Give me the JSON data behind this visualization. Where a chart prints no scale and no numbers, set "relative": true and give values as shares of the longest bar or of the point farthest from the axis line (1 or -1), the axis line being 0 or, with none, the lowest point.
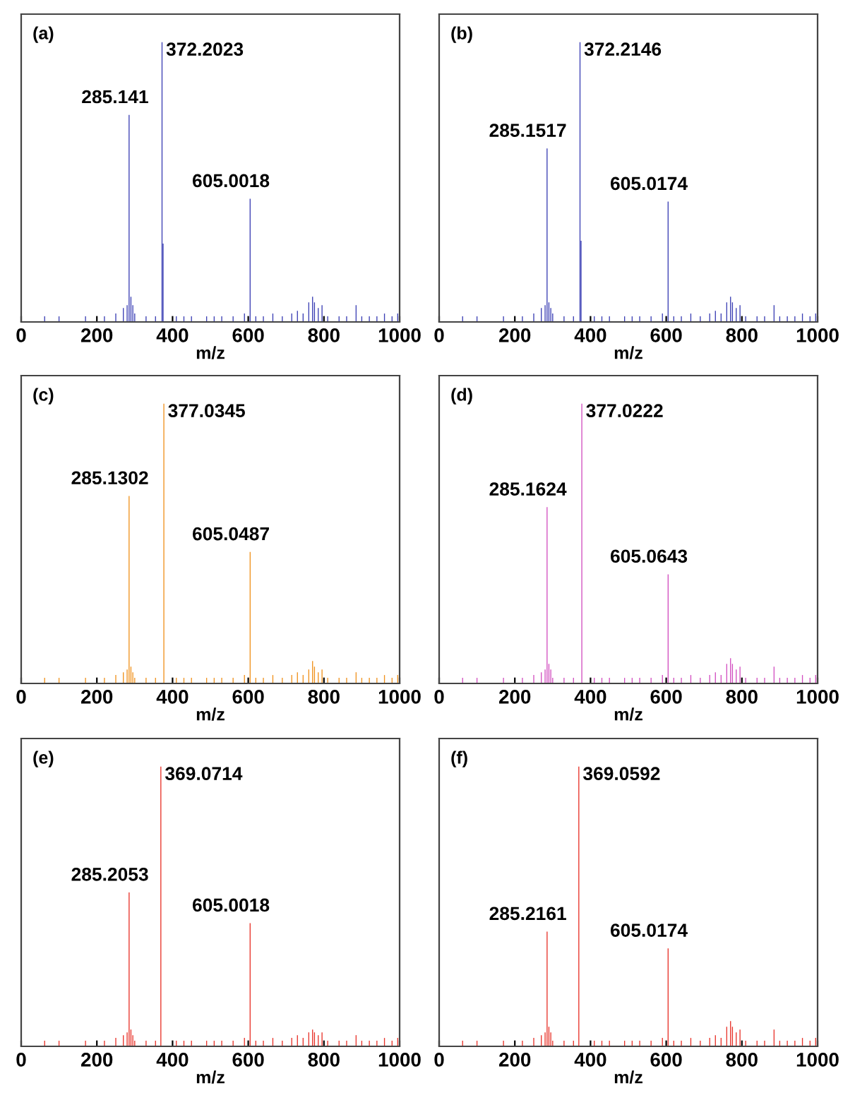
{
  "chart_data": [
    {
      "type": "bar",
      "title": "(a)",
      "xlabel": "m/z",
      "relative": true,
      "xlim": [
        0,
        1000
      ],
      "xticks": [
        0,
        200,
        400,
        600,
        800,
        1000
      ],
      "grid": false,
      "color": "#3b3fb4",
      "x": [
        62,
        100,
        170,
        220,
        250,
        270,
        280,
        285.141,
        290,
        295,
        300,
        330,
        355,
        372.2023,
        375,
        410,
        430,
        450,
        490,
        510,
        530,
        560,
        590,
        605.0018,
        620,
        640,
        665,
        690,
        715,
        730,
        745,
        760,
        770,
        775,
        785,
        795,
        810,
        840,
        860,
        885,
        900,
        920,
        940,
        960,
        980,
        995
      ],
      "values": [
        0.02,
        0.02,
        0.02,
        0.02,
        0.03,
        0.05,
        0.06,
        0.74,
        0.09,
        0.06,
        0.03,
        0.02,
        0.02,
        1,
        0.28,
        0.02,
        0.02,
        0.02,
        0.02,
        0.02,
        0.02,
        0.02,
        0.03,
        0.44,
        0.02,
        0.02,
        0.03,
        0.02,
        0.03,
        0.04,
        0.03,
        0.07,
        0.09,
        0.07,
        0.05,
        0.06,
        0.02,
        0.02,
        0.02,
        0.06,
        0.02,
        0.02,
        0.02,
        0.03,
        0.02,
        0.03
      ],
      "annotations": [
        {
          "text": "285.141",
          "x": 285.141,
          "y": 0.74
        },
        {
          "text": "372.2023",
          "x": 372.2023,
          "y": 1
        },
        {
          "text": "605.0018",
          "x": 605.0018,
          "y": 0.44
        }
      ]
    },
    {
      "type": "bar",
      "title": "(b)",
      "xlabel": "m/z",
      "relative": true,
      "xlim": [
        0,
        1000
      ],
      "xticks": [
        0,
        200,
        400,
        600,
        800,
        1000
      ],
      "grid": false,
      "color": "#3b3fb4",
      "x": [
        62,
        100,
        170,
        220,
        250,
        270,
        280,
        285.1517,
        290,
        295,
        300,
        330,
        355,
        372.2146,
        375,
        410,
        430,
        450,
        490,
        510,
        530,
        560,
        590,
        605.0174,
        620,
        640,
        665,
        690,
        715,
        730,
        745,
        760,
        770,
        775,
        785,
        795,
        810,
        840,
        860,
        885,
        900,
        920,
        940,
        960,
        980,
        995
      ],
      "values": [
        0.02,
        0.02,
        0.02,
        0.02,
        0.03,
        0.05,
        0.06,
        0.62,
        0.07,
        0.05,
        0.03,
        0.02,
        0.02,
        1,
        0.29,
        0.02,
        0.02,
        0.02,
        0.02,
        0.02,
        0.02,
        0.02,
        0.03,
        0.43,
        0.02,
        0.02,
        0.03,
        0.02,
        0.03,
        0.04,
        0.03,
        0.07,
        0.09,
        0.07,
        0.05,
        0.06,
        0.02,
        0.02,
        0.02,
        0.06,
        0.02,
        0.02,
        0.02,
        0.03,
        0.02,
        0.03
      ],
      "annotations": [
        {
          "text": "285.1517",
          "x": 285.1517,
          "y": 0.62
        },
        {
          "text": "372.2146",
          "x": 372.2146,
          "y": 1
        },
        {
          "text": "605.0174",
          "x": 605.0174,
          "y": 0.43
        }
      ]
    },
    {
      "type": "bar",
      "title": "(c)",
      "xlabel": "m/z",
      "relative": true,
      "xlim": [
        0,
        1000
      ],
      "xticks": [
        0,
        200,
        400,
        600,
        800,
        1000
      ],
      "grid": false,
      "color": "#f0921e",
      "x": [
        62,
        100,
        170,
        220,
        250,
        270,
        280,
        285.1302,
        290,
        295,
        300,
        330,
        355,
        377.0345,
        410,
        430,
        450,
        490,
        510,
        530,
        560,
        590,
        605.0487,
        620,
        640,
        665,
        690,
        715,
        730,
        745,
        760,
        770,
        775,
        785,
        795,
        810,
        840,
        860,
        885,
        900,
        920,
        940,
        960,
        980,
        995
      ],
      "values": [
        0.02,
        0.02,
        0.02,
        0.02,
        0.03,
        0.04,
        0.05,
        0.67,
        0.06,
        0.04,
        0.02,
        0.02,
        0.02,
        1,
        0.02,
        0.02,
        0.02,
        0.02,
        0.02,
        0.02,
        0.02,
        0.03,
        0.47,
        0.02,
        0.02,
        0.03,
        0.02,
        0.03,
        0.04,
        0.03,
        0.05,
        0.08,
        0.06,
        0.04,
        0.05,
        0.02,
        0.02,
        0.02,
        0.04,
        0.02,
        0.02,
        0.02,
        0.03,
        0.02,
        0.03
      ],
      "annotations": [
        {
          "text": "285.1302",
          "x": 285.1302,
          "y": 0.67
        },
        {
          "text": "377.0345",
          "x": 377.0345,
          "y": 1
        },
        {
          "text": "605.0487",
          "x": 605.0487,
          "y": 0.47
        }
      ]
    },
    {
      "type": "bar",
      "title": "(d)",
      "xlabel": "m/z",
      "relative": true,
      "xlim": [
        0,
        1000
      ],
      "xticks": [
        0,
        200,
        400,
        600,
        800,
        1000
      ],
      "grid": false,
      "color": "#d24fc0",
      "x": [
        62,
        100,
        170,
        220,
        250,
        270,
        280,
        285.1624,
        290,
        295,
        300,
        330,
        355,
        377.0222,
        410,
        430,
        450,
        490,
        510,
        530,
        560,
        590,
        605.0643,
        620,
        640,
        665,
        690,
        715,
        730,
        745,
        760,
        770,
        775,
        785,
        795,
        810,
        840,
        860,
        885,
        900,
        920,
        940,
        960,
        980,
        995
      ],
      "values": [
        0.02,
        0.02,
        0.02,
        0.02,
        0.03,
        0.04,
        0.05,
        0.63,
        0.07,
        0.05,
        0.02,
        0.02,
        0.02,
        1,
        0.02,
        0.02,
        0.02,
        0.02,
        0.02,
        0.02,
        0.02,
        0.03,
        0.39,
        0.02,
        0.02,
        0.03,
        0.02,
        0.03,
        0.04,
        0.03,
        0.07,
        0.09,
        0.07,
        0.05,
        0.06,
        0.02,
        0.02,
        0.02,
        0.06,
        0.02,
        0.02,
        0.02,
        0.03,
        0.02,
        0.03
      ],
      "annotations": [
        {
          "text": "285.1624",
          "x": 285.1624,
          "y": 0.63
        },
        {
          "text": "377.0222",
          "x": 377.0222,
          "y": 1
        },
        {
          "text": "605.0643",
          "x": 605.0643,
          "y": 0.39
        }
      ]
    },
    {
      "type": "bar",
      "title": "(e)",
      "xlabel": "m/z",
      "relative": true,
      "xlim": [
        0,
        1000
      ],
      "xticks": [
        0,
        200,
        400,
        600,
        800,
        1000
      ],
      "grid": false,
      "color": "#e8332a",
      "x": [
        62,
        100,
        170,
        220,
        250,
        270,
        280,
        285.2053,
        290,
        295,
        300,
        330,
        355,
        369.0714,
        410,
        430,
        450,
        490,
        510,
        530,
        560,
        590,
        605.0018,
        620,
        640,
        665,
        690,
        715,
        730,
        745,
        760,
        770,
        775,
        785,
        795,
        810,
        840,
        860,
        885,
        900,
        920,
        940,
        960,
        980,
        995
      ],
      "values": [
        0.02,
        0.02,
        0.02,
        0.02,
        0.03,
        0.04,
        0.05,
        0.55,
        0.06,
        0.04,
        0.02,
        0.02,
        0.02,
        1,
        0.02,
        0.02,
        0.02,
        0.02,
        0.02,
        0.02,
        0.02,
        0.03,
        0.44,
        0.02,
        0.02,
        0.03,
        0.02,
        0.03,
        0.04,
        0.03,
        0.05,
        0.06,
        0.05,
        0.04,
        0.05,
        0.02,
        0.02,
        0.02,
        0.04,
        0.02,
        0.02,
        0.02,
        0.03,
        0.02,
        0.03
      ],
      "annotations": [
        {
          "text": "285.2053",
          "x": 285.2053,
          "y": 0.55
        },
        {
          "text": "369.0714",
          "x": 369.0714,
          "y": 1
        },
        {
          "text": "605.0018",
          "x": 605.0018,
          "y": 0.44
        }
      ]
    },
    {
      "type": "bar",
      "title": "(f)",
      "xlabel": "m/z",
      "relative": true,
      "xlim": [
        0,
        1000
      ],
      "xticks": [
        0,
        200,
        400,
        600,
        800,
        1000
      ],
      "grid": false,
      "color": "#e8332a",
      "x": [
        62,
        100,
        170,
        220,
        250,
        270,
        280,
        285.2161,
        290,
        295,
        300,
        330,
        355,
        369.0592,
        410,
        430,
        450,
        490,
        510,
        530,
        560,
        590,
        605.0174,
        620,
        640,
        665,
        690,
        715,
        730,
        745,
        760,
        770,
        775,
        785,
        795,
        810,
        840,
        860,
        885,
        900,
        920,
        940,
        960,
        980,
        995
      ],
      "values": [
        0.02,
        0.02,
        0.02,
        0.02,
        0.03,
        0.04,
        0.05,
        0.41,
        0.07,
        0.05,
        0.02,
        0.02,
        0.02,
        1,
        0.02,
        0.02,
        0.02,
        0.02,
        0.02,
        0.02,
        0.02,
        0.03,
        0.35,
        0.02,
        0.02,
        0.03,
        0.02,
        0.03,
        0.04,
        0.03,
        0.07,
        0.09,
        0.07,
        0.05,
        0.06,
        0.02,
        0.02,
        0.02,
        0.06,
        0.02,
        0.02,
        0.02,
        0.03,
        0.02,
        0.03
      ],
      "annotations": [
        {
          "text": "285.2161",
          "x": 285.2161,
          "y": 0.41
        },
        {
          "text": "369.0592",
          "x": 369.0592,
          "y": 1
        },
        {
          "text": "605.0174",
          "x": 605.0174,
          "y": 0.35
        }
      ]
    }
  ]
}
